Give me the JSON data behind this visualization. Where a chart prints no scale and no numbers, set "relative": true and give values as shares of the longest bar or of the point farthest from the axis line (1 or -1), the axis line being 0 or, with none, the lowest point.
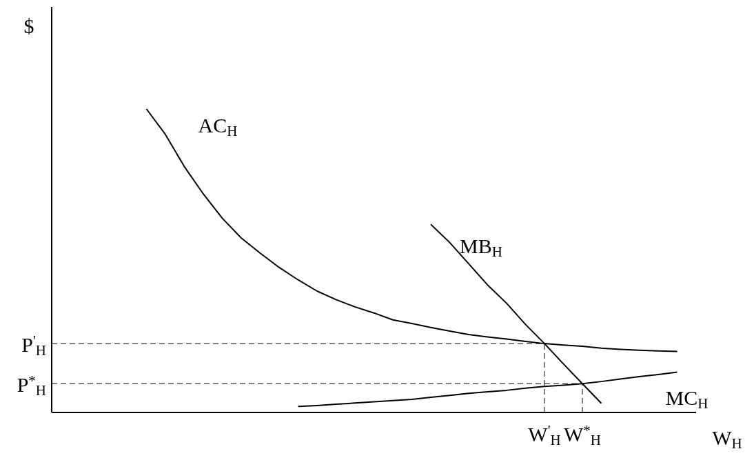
{
  "chart_data": {
    "type": "line",
    "relative": true,
    "ylabel": "$",
    "xlabel": "W$_{H}$",
    "marker": "none",
    "line_style": "solid",
    "categories": [
      null,
      null,
      null,
      null,
      null,
      null,
      null,
      null,
      null,
      null,
      null,
      null,
      null,
      null,
      null,
      null,
      null,
      null,
      null,
      null,
      null,
      null,
      null,
      null,
      null,
      null,
      "W$^{'}$$_{H}$",
      null,
      "W$^{*}$$_{H}$",
      null,
      null,
      null,
      null,
      null,
      null
    ],
    "series": [
      {
        "name": "AC$_{H}$",
        "color": "#000000",
        "values": [
          null,
          null,
          null,
          null,
          null,
          1.0,
          0.916,
          0.81,
          0.72,
          0.64,
          0.575,
          0.525,
          0.478,
          0.437,
          0.4,
          0.372,
          0.348,
          0.328,
          0.305,
          0.293,
          0.28,
          0.268,
          0.257,
          0.249,
          0.242,
          0.234,
          0.227,
          0.222,
          0.218,
          0.212,
          0.208,
          0.205,
          0.203,
          0.201,
          null
        ]
      },
      {
        "name": "MB$_{H}$",
        "color": "#000000",
        "values": [
          null,
          null,
          null,
          null,
          null,
          null,
          null,
          null,
          null,
          null,
          null,
          null,
          null,
          null,
          null,
          null,
          null,
          null,
          null,
          null,
          0.62,
          0.56,
          0.49,
          0.42,
          0.36,
          0.29,
          0.227,
          0.16,
          0.095,
          0.03,
          null,
          null,
          null,
          null,
          null
        ]
      },
      {
        "name": "MC$_{H}$",
        "color": "#000000",
        "values": [
          null,
          null,
          null,
          null,
          null,
          null,
          null,
          null,
          null,
          null,
          null,
          null,
          null,
          0.02,
          0.023,
          0.027,
          0.031,
          0.035,
          0.039,
          0.043,
          0.05,
          0.056,
          0.063,
          0.068,
          0.073,
          0.08,
          0.086,
          0.09,
          0.095,
          0.102,
          0.11,
          0.118,
          0.125,
          0.133,
          null
        ]
      }
    ],
    "ref_lines": [
      {
        "axis": "y",
        "value": 0.227,
        "label": "P$^{'}$$_{H}$",
        "line_style": "dashed"
      },
      {
        "axis": "y",
        "value": 0.095,
        "label": "P$^{*}$$_{H}$",
        "line_style": "dashed"
      },
      {
        "axis": "x",
        "value": "W$^{'}$$_{H}$",
        "line_style": "dashed"
      },
      {
        "axis": "x",
        "value": "W$^{*}$$_{H}$",
        "line_style": "dashed"
      }
    ]
  }
}
